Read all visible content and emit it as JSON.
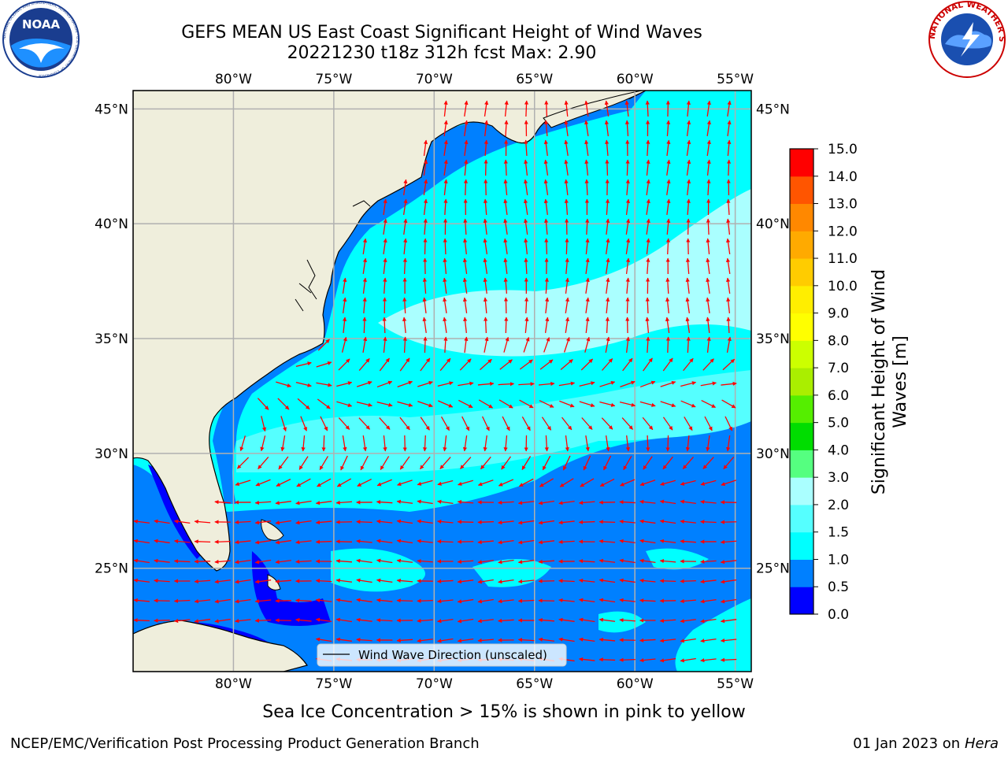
{
  "header": {
    "title_line1": "GEFS MEAN US East Coast Significant Height of Wind Waves",
    "title_line2": "20221230 t18z 312h fcst   Max: 2.90"
  },
  "logos": {
    "left_text": "NOAA",
    "left_ring_text": "NATIONAL OCEANIC AND ATMOSPHERIC ADMINISTRATION · U.S. DEPARTMENT OF COMMERCE",
    "right_ring_text": "NATIONAL WEATHER SERVICE"
  },
  "map": {
    "lon_labels": [
      "80°W",
      "75°W",
      "70°W",
      "65°W",
      "60°W",
      "55°W"
    ],
    "lat_labels": [
      "45°N",
      "40°N",
      "35°N",
      "30°N",
      "25°N"
    ],
    "lon_values": [
      -80,
      -75,
      -70,
      -65,
      -60,
      -55
    ],
    "lat_values": [
      45,
      40,
      35,
      30,
      25
    ],
    "extent": {
      "lon_min": -85,
      "lon_max": -54.2,
      "lat_min": 20.5,
      "lat_max": 45.8
    },
    "legend_label": "Wind Wave Direction (unscaled)",
    "colors": {
      "land": "#efeedc",
      "ocean_low": "#0080ff",
      "ocean_mid": "#00ffff",
      "ocean_high": "#aaffff",
      "ocean_min": "#0000ff",
      "arrow": "#ff0000",
      "grid": "#b0b0b0"
    }
  },
  "colorbar": {
    "label_line1": "Significant Height of Wind",
    "label_line2": "Waves [m]",
    "ticks": [
      "0.0",
      "0.5",
      "1.0",
      "1.5",
      "2.0",
      "3.0",
      "4.0",
      "5.0",
      "6.0",
      "7.0",
      "8.0",
      "9.0",
      "10.0",
      "11.0",
      "12.0",
      "13.0",
      "14.0",
      "15.0"
    ],
    "colors": [
      "#0000ff",
      "#0080ff",
      "#00ffff",
      "#55ffff",
      "#aaffff",
      "#55ff80",
      "#00dd00",
      "#55ee00",
      "#aaee00",
      "#ccff00",
      "#ffff00",
      "#ffee00",
      "#ffcc00",
      "#ffaa00",
      "#ff8800",
      "#ff5500",
      "#ff0000"
    ]
  },
  "footer": {
    "ice_note": "Sea Ice Concentration > 15% is shown in pink to yellow",
    "branch": "NCEP/EMC/Verification Post Processing Product Generation Branch",
    "date_prefix": "01 Jan 2023 on ",
    "host": "Hera"
  }
}
